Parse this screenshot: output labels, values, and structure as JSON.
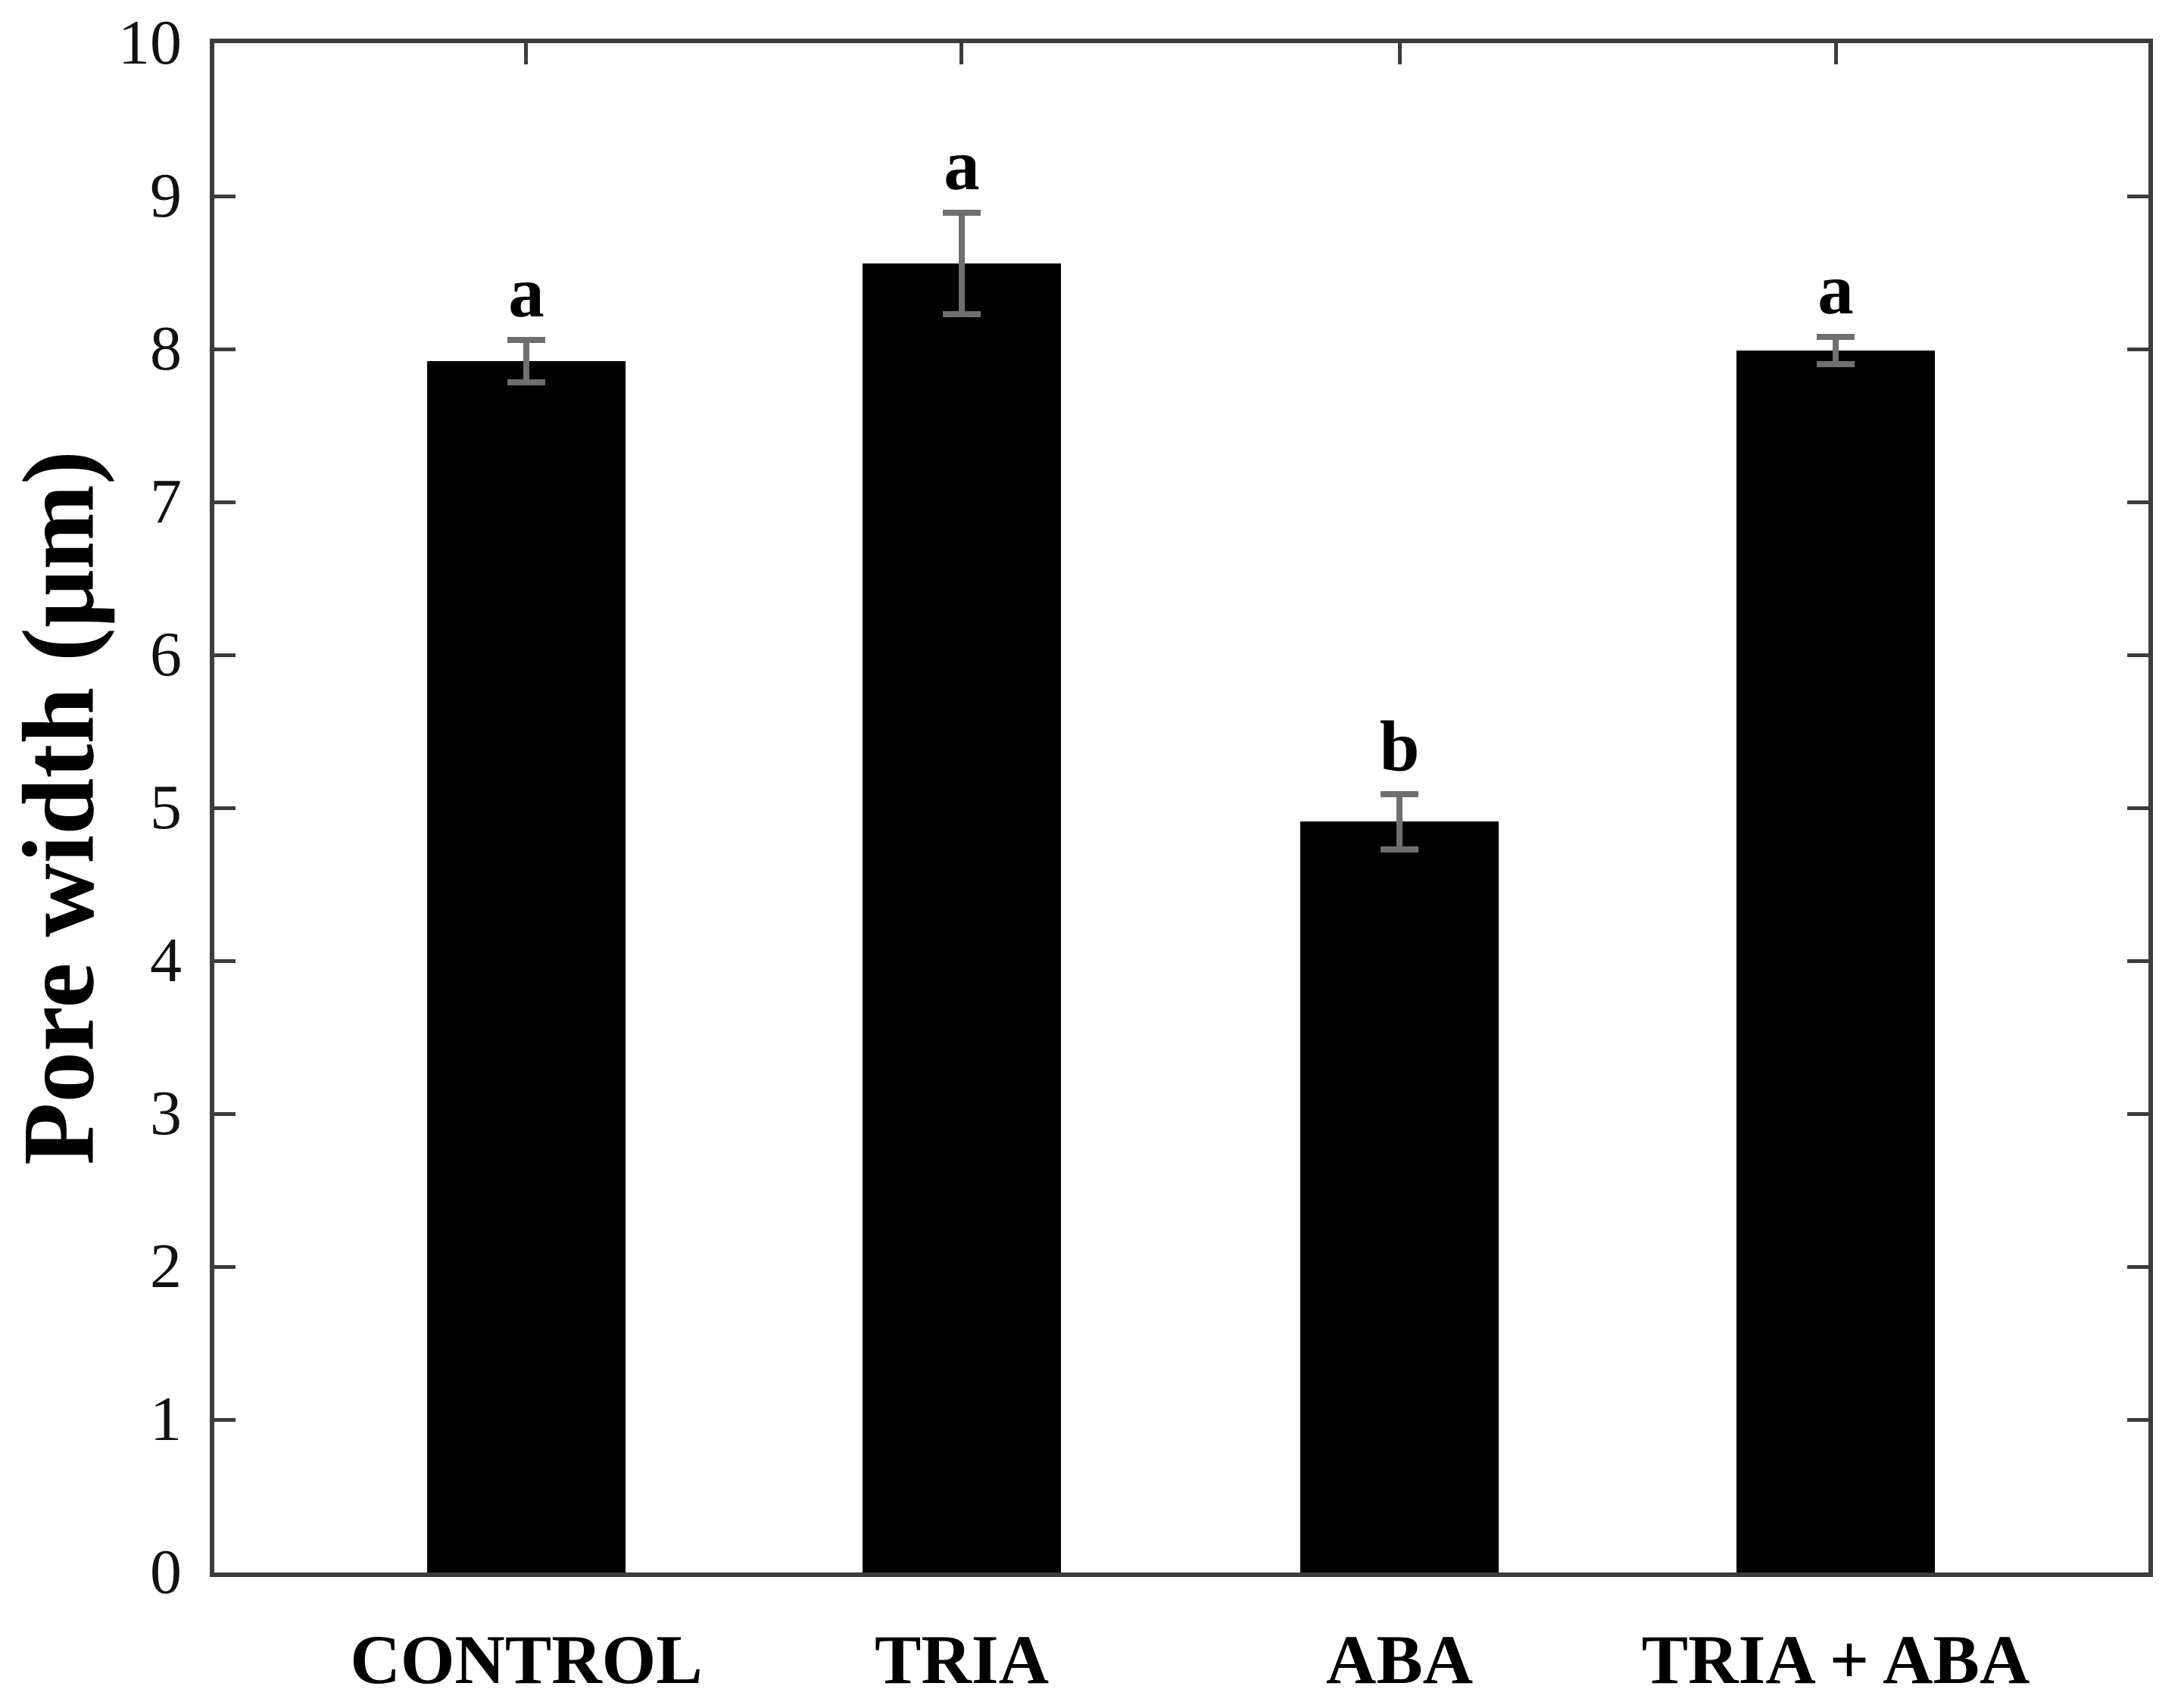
{
  "chart_data": {
    "type": "bar",
    "title": "",
    "xlabel": "",
    "ylabel": "Pore width (μm)",
    "categories": [
      "CONTROL",
      "TRIA",
      "ABA",
      "TRIA + ABA"
    ],
    "values": [
      7.92,
      8.56,
      4.91,
      7.99
    ],
    "errors": [
      0.14,
      0.33,
      0.18,
      0.09
    ],
    "sig_letters": [
      "a",
      "a",
      "b",
      "a"
    ],
    "ylim": [
      0,
      10
    ],
    "yticks": [
      0,
      1,
      2,
      3,
      4,
      5,
      6,
      7,
      8,
      9,
      10
    ],
    "grid": "off",
    "legend": "none",
    "frame": "full-box with inward ticks",
    "bar_color": "#000000",
    "error_bar_color": "#6f6f6f",
    "axis_color": "#3c3c3c",
    "text_color": "#000000",
    "background_color": "#ffffff"
  }
}
